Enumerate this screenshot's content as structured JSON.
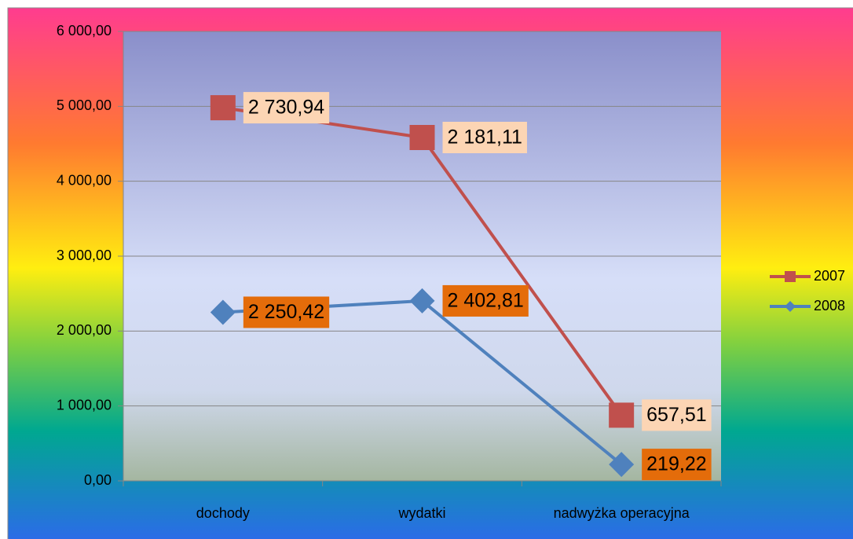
{
  "chart_data": {
    "type": "line",
    "stacked": true,
    "categories": [
      "dochody",
      "wydatki",
      "nadwyżka operacyjna"
    ],
    "series": [
      {
        "name": "2007",
        "color": "#c0504d",
        "marker": "square",
        "values": [
          2730.94,
          2181.11,
          657.51
        ],
        "value_labels": [
          "2 730,94",
          "2 181,11",
          "657,51"
        ],
        "label_fill": "#fcd5b4"
      },
      {
        "name": "2008",
        "color": "#4f81bd",
        "marker": "diamond",
        "values": [
          2250.42,
          2402.81,
          219.22
        ],
        "value_labels": [
          "2 250,42",
          "2 402,81",
          "219,22"
        ],
        "label_fill": "#e46c0a"
      }
    ],
    "ylim": [
      0,
      6000
    ],
    "yticks": [
      {
        "value": 0,
        "label": "0,00"
      },
      {
        "value": 1000,
        "label": "1 000,00"
      },
      {
        "value": 2000,
        "label": "2 000,00"
      },
      {
        "value": 3000,
        "label": "3 000,00"
      },
      {
        "value": 4000,
        "label": "4 000,00"
      },
      {
        "value": 5000,
        "label": "5 000,00"
      },
      {
        "value": 6000,
        "label": "6 000,00"
      }
    ],
    "grid": true,
    "legend": "right"
  }
}
